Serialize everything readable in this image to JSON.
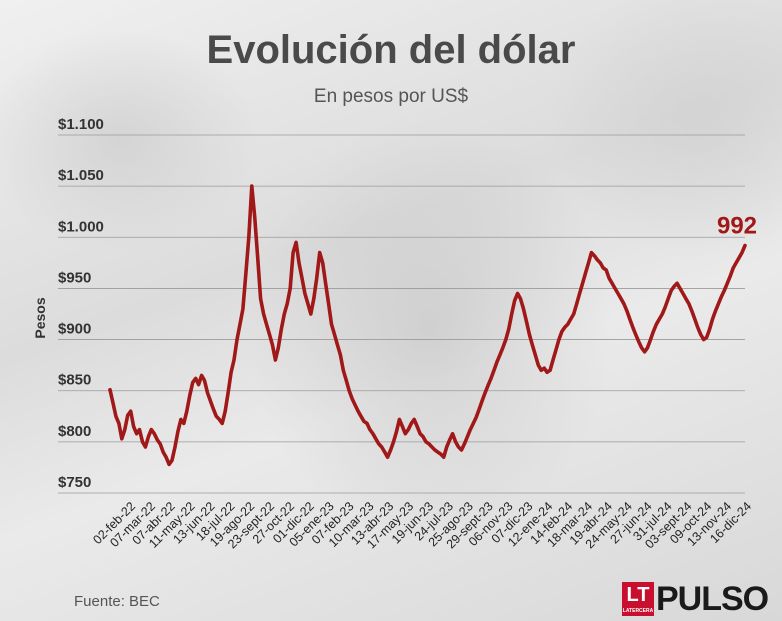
{
  "header": {
    "title": "Evolución del dólar",
    "subtitle": "En pesos por US$"
  },
  "footer": {
    "source": "Fuente: BEC",
    "logo_mark": "LT",
    "logo_mark_sub": "LATERCERA",
    "logo_text": "PULSO"
  },
  "colors": {
    "line": "#a01818",
    "end_label": "#a01818",
    "grid": "#9a9a9a",
    "text": "#333333"
  },
  "chart_data": {
    "type": "line",
    "title": "Evolución del dólar",
    "subtitle": "En pesos por US$",
    "xlabel": "",
    "ylabel": "Pesos",
    "ylim": [
      750,
      1100
    ],
    "yticks": [
      750,
      800,
      850,
      900,
      950,
      1000,
      1050,
      1100
    ],
    "ytick_labels": [
      "$750",
      "$800",
      "$850",
      "$900",
      "$950",
      "$1.000",
      "$1.050",
      "$1.100"
    ],
    "grid": true,
    "xtick_labels": [
      "02-feb-22",
      "07-mar-22",
      "07-abr-22",
      "11-may-22",
      "13-jun-22",
      "18-jul-22",
      "19-ago-22",
      "23-sept-22",
      "27-oct-22",
      "01-dic-22",
      "05-ene-23",
      "07-feb-23",
      "10-mar-23",
      "13-abr-23",
      "17-may-23",
      "19-jun-23",
      "24-jul-23",
      "25-ago-23",
      "29-sept-23",
      "06-nov-23",
      "07-dic-23",
      "12-ene-24",
      "14-feb-24",
      "18-mar-24",
      "19-abr-24",
      "24-may-24",
      "27-jun-24",
      "31-jul-24",
      "03-sept-24",
      "09-oct-24",
      "13-nov-24",
      "16-dic-24"
    ],
    "end_label": "992",
    "series": [
      {
        "values": [
          851,
          838,
          825,
          818,
          803,
          812,
          826,
          830,
          815,
          808,
          812,
          800,
          795,
          805,
          812,
          808,
          802,
          798,
          790,
          785,
          778,
          782,
          795,
          810,
          822,
          818,
          830,
          845,
          858,
          862,
          856,
          865,
          860,
          848,
          840,
          832,
          825,
          822,
          818,
          830,
          848,
          868,
          880,
          900,
          915,
          930,
          965,
          1000,
          1050,
          1020,
          980,
          940,
          925,
          915,
          905,
          895,
          880,
          892,
          910,
          925,
          935,
          950,
          985,
          995,
          975,
          960,
          945,
          935,
          925,
          940,
          960,
          985,
          975,
          955,
          935,
          915,
          905,
          895,
          885,
          870,
          860,
          850,
          842,
          836,
          830,
          825,
          820,
          818,
          812,
          808,
          803,
          798,
          795,
          790,
          785,
          792,
          800,
          810,
          822,
          815,
          808,
          812,
          818,
          822,
          815,
          808,
          805,
          800,
          798,
          795,
          792,
          790,
          788,
          785,
          795,
          802,
          808,
          800,
          795,
          792,
          798,
          805,
          812,
          818,
          824,
          832,
          840,
          848,
          855,
          862,
          870,
          878,
          885,
          892,
          900,
          910,
          925,
          938,
          945,
          940,
          930,
          918,
          905,
          895,
          885,
          875,
          870,
          872,
          868,
          870,
          880,
          890,
          900,
          908,
          912,
          915,
          920,
          925,
          935,
          945,
          955,
          965,
          975,
          985,
          982,
          978,
          975,
          970,
          968,
          960,
          955,
          950,
          945,
          940,
          935,
          928,
          920,
          912,
          905,
          898,
          892,
          888,
          892,
          900,
          908,
          915,
          920,
          925,
          932,
          940,
          948,
          952,
          955,
          950,
          945,
          940,
          935,
          928,
          920,
          912,
          905,
          900,
          902,
          910,
          920,
          928,
          935,
          942,
          948,
          955,
          962,
          970,
          975,
          980,
          985,
          992
        ]
      }
    ]
  }
}
